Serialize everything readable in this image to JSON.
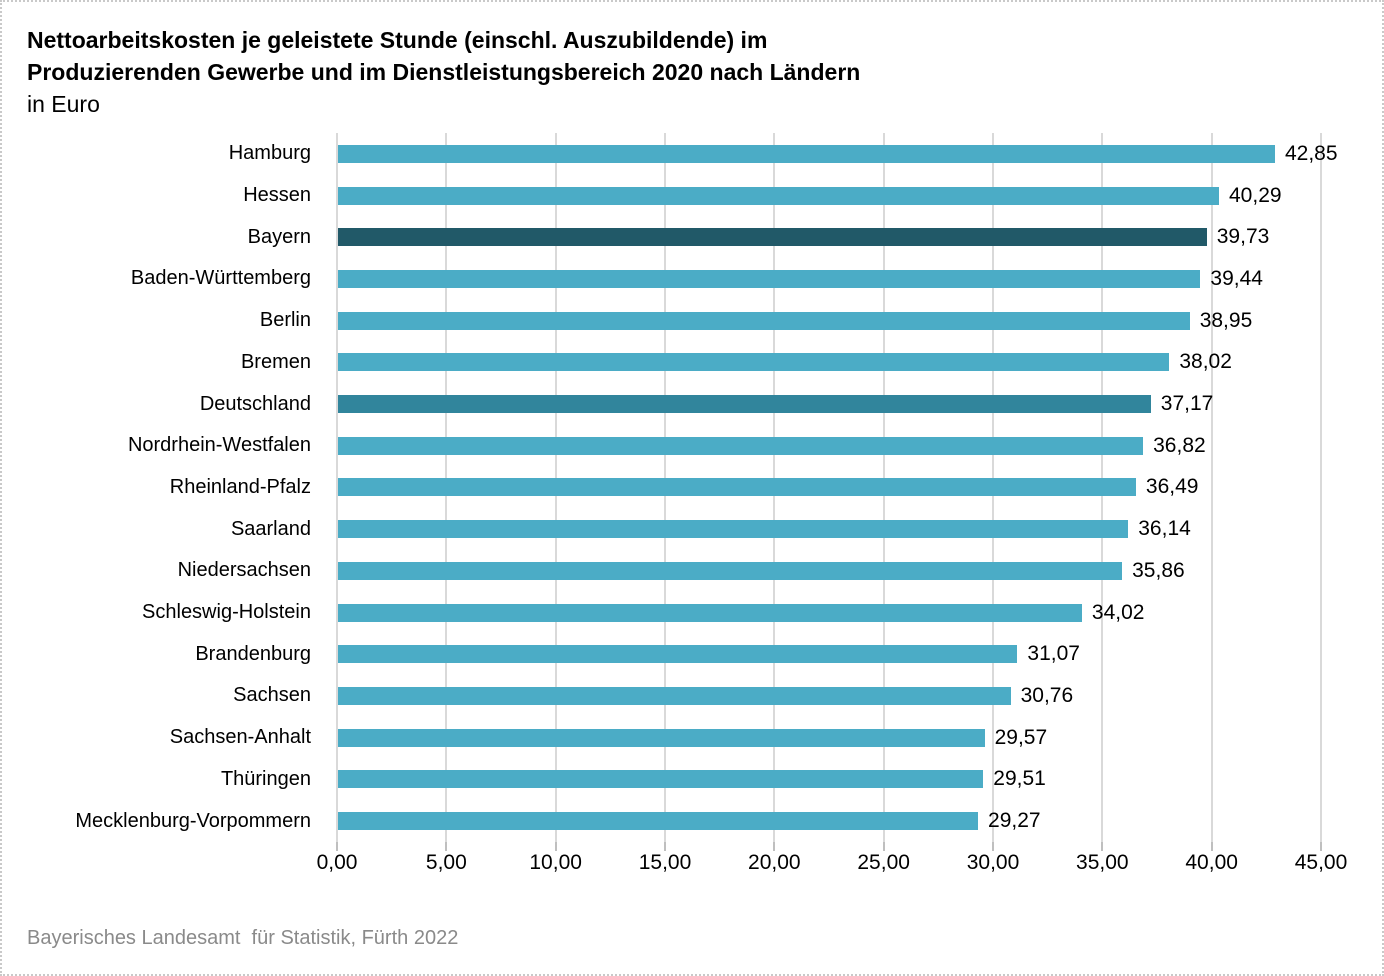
{
  "title": {
    "line1": "Nettoarbeitskosten je geleistete Stunde (einschl. Auszubildende) im",
    "line2": "Produzierenden Gewerbe und im Dienstleistungsbereich 2020 nach Ländern",
    "subtitle": "in Euro"
  },
  "source": "Bayerisches Landesamt  für Statistik, Fürth 2022",
  "colors": {
    "bar_default": "#4BACC6",
    "bar_bayern_dark": "#215968",
    "bar_deutschland_medium": "#31859C",
    "gridline": "#D9D9D9",
    "tick": "#BFBFBF",
    "page_border": "#C9C9C9",
    "source_text": "#8A8A8A",
    "text": "#000000"
  },
  "chart_data": {
    "type": "bar",
    "orientation": "horizontal",
    "title": "Nettoarbeitskosten je geleistete Stunde (einschl. Auszubildende) im Produzierenden Gewerbe und im Dienstleistungsbereich 2020 nach Ländern",
    "subtitle": "in Euro",
    "categories": [
      "Hamburg",
      "Hessen",
      "Bayern",
      "Baden-Württemberg",
      "Berlin",
      "Bremen",
      "Deutschland",
      "Nordrhein-Westfalen",
      "Rheinland-Pfalz",
      "Saarland",
      "Niedersachsen",
      "Schleswig-Holstein",
      "Brandenburg",
      "Sachsen",
      "Sachsen-Anhalt",
      "Thüringen",
      "Mecklenburg-Vorpommern"
    ],
    "values": [
      42.85,
      40.29,
      39.73,
      39.44,
      38.95,
      38.02,
      37.17,
      36.82,
      36.49,
      36.14,
      35.86,
      34.02,
      31.07,
      30.76,
      29.57,
      29.51,
      29.27
    ],
    "value_labels": [
      "42,85",
      "40,29",
      "39,73",
      "39,44",
      "38,95",
      "38,02",
      "37,17",
      "36,82",
      "36,49",
      "36,14",
      "35,86",
      "34,02",
      "31,07",
      "30,76",
      "29,57",
      "29,51",
      "29,27"
    ],
    "emphasis": {
      "Bayern": "dark",
      "Deutschland": "medium"
    },
    "xlabel": "",
    "ylabel": "",
    "xlim": [
      0,
      45
    ],
    "x_tick_labels": [
      "0,00",
      "5,00",
      "10,00",
      "15,00",
      "20,00",
      "25,00",
      "30,00",
      "35,00",
      "40,00",
      "45,00"
    ],
    "grid": "vertical",
    "legend": false,
    "source": "Bayerisches Landesamt für Statistik, Fürth 2022"
  }
}
